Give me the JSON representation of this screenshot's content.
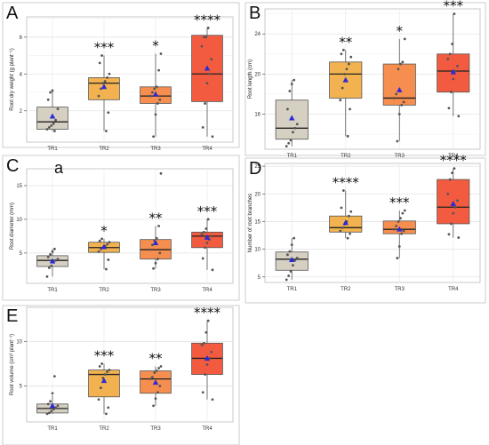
{
  "chart_data": [
    {
      "type": "box",
      "panel_label": "A",
      "panel_note": "",
      "ylabel": "Root dry weight (g plant⁻¹)",
      "categories": [
        "TR1",
        "TR2",
        "TR3",
        "TR4"
      ],
      "ylim": [
        0.3,
        7.1
      ],
      "yticks": [
        2,
        4,
        6
      ],
      "grid": true,
      "colors": [
        "#d6d0c2",
        "#f2b24f",
        "#f68e4f",
        "#f25b3f"
      ],
      "boxes": [
        {
          "category": "TR1",
          "min": 0.9,
          "q1": 1.0,
          "median": 1.4,
          "q3": 2.2,
          "max": 3.1,
          "mean": 1.7
        },
        {
          "category": "TR2",
          "min": 0.9,
          "q1": 2.6,
          "median": 3.5,
          "q3": 3.8,
          "max": 5.0,
          "mean": 3.3
        },
        {
          "category": "TR3",
          "min": 0.6,
          "q1": 2.4,
          "median": 2.8,
          "q3": 3.3,
          "max": 5.1,
          "mean": 2.9
        },
        {
          "category": "TR4",
          "min": 0.6,
          "q1": 2.5,
          "median": 4.0,
          "q3": 6.1,
          "max": 6.5,
          "mean": 4.3
        }
      ],
      "points": [
        [
          1.0,
          1.1,
          1.2,
          1.3,
          1.5,
          2.1,
          2.6,
          3.0,
          3.1,
          0.9
        ],
        [
          0.9,
          1.9,
          2.8,
          3.2,
          3.5,
          3.6,
          3.8,
          4.0,
          4.6,
          5.0
        ],
        [
          0.6,
          1.8,
          2.4,
          2.6,
          2.8,
          3.0,
          3.2,
          3.3,
          4.2,
          5.1
        ],
        [
          0.6,
          1.1,
          2.4,
          3.5,
          4.0,
          4.8,
          5.5,
          6.0,
          6.0,
          6.5
        ]
      ],
      "significance": [
        "",
        "***",
        "*",
        "****"
      ]
    },
    {
      "type": "box",
      "panel_label": "B",
      "panel_note": "",
      "ylabel": "Root length (cm)",
      "categories": [
        "TR1",
        "TR2",
        "TR3",
        "TR4"
      ],
      "ylim": [
        12.5,
        26.5
      ],
      "yticks": [
        16,
        20,
        24
      ],
      "grid": true,
      "colors": [
        "#d6d0c2",
        "#f2b24f",
        "#f68e4f",
        "#f25b3f"
      ],
      "boxes": [
        {
          "category": "TR1",
          "min": 12.8,
          "q1": 13.5,
          "median": 14.6,
          "q3": 17.4,
          "max": 19.4,
          "mean": 15.6
        },
        {
          "category": "TR2",
          "min": 13.8,
          "q1": 17.6,
          "median": 20.0,
          "q3": 21.2,
          "max": 22.4,
          "mean": 19.4
        },
        {
          "category": "TR3",
          "min": 13.3,
          "q1": 16.9,
          "median": 17.6,
          "q3": 21.0,
          "max": 23.5,
          "mean": 18.4
        },
        {
          "category": "TR4",
          "min": 15.8,
          "q1": 18.2,
          "median": 20.3,
          "q3": 22.0,
          "max": 26.0,
          "mean": 20.2
        }
      ],
      "points": [
        [
          12.8,
          13.1,
          13.4,
          14.2,
          14.6,
          15.0,
          16.5,
          18.3,
          19.0,
          19.4
        ],
        [
          13.8,
          16.5,
          17.4,
          18.6,
          20.0,
          20.5,
          21.0,
          21.7,
          22.0,
          22.4
        ],
        [
          13.3,
          16.0,
          16.9,
          17.2,
          17.6,
          18.0,
          20.5,
          21.0,
          21.2,
          23.5
        ],
        [
          15.8,
          16.6,
          18.2,
          19.5,
          20.3,
          20.8,
          21.5,
          22.0,
          23.0,
          26.0
        ]
      ],
      "significance": [
        "",
        "**",
        "*",
        "***"
      ]
    },
    {
      "type": "box",
      "panel_label": "C",
      "panel_note": "a",
      "ylabel": "Root diameter (mm)",
      "categories": [
        "TR1",
        "TR2",
        "TR3",
        "TR4"
      ],
      "ylim": [
        0.5,
        17.5
      ],
      "yticks": [
        5,
        10,
        15
      ],
      "grid": true,
      "colors": [
        "#d6d0c2",
        "#f2b24f",
        "#f68e4f",
        "#f25b3f"
      ],
      "boxes": [
        {
          "category": "TR1",
          "min": 1.5,
          "q1": 3.0,
          "median": 3.9,
          "q3": 4.6,
          "max": 5.6,
          "mean": 3.8
        },
        {
          "category": "TR2",
          "min": 2.6,
          "q1": 5.1,
          "median": 5.8,
          "q3": 6.6,
          "max": 7.1,
          "mean": 5.9
        },
        {
          "category": "TR3",
          "min": 2.7,
          "q1": 4.1,
          "median": 5.5,
          "q3": 7.0,
          "max": 9.0,
          "mean": 6.5
        },
        {
          "category": "TR4",
          "min": 2.5,
          "q1": 5.8,
          "median": 7.5,
          "q3": 8.1,
          "max": 10.0,
          "mean": 7.3
        }
      ],
      "points": [
        [
          1.5,
          2.8,
          3.1,
          3.6,
          3.9,
          4.1,
          4.4,
          4.8,
          5.2,
          5.6
        ],
        [
          2.6,
          4.0,
          5.2,
          5.6,
          5.8,
          6.0,
          6.3,
          6.6,
          6.8,
          7.1
        ],
        [
          2.7,
          3.5,
          4.1,
          5.0,
          5.5,
          6.2,
          6.8,
          7.2,
          9.0,
          16.8
        ],
        [
          2.5,
          4.2,
          5.8,
          6.5,
          7.0,
          7.5,
          7.8,
          8.1,
          8.6,
          10.0
        ]
      ],
      "significance": [
        "",
        "*",
        "**",
        "***"
      ]
    },
    {
      "type": "box",
      "panel_label": "D",
      "panel_note": "",
      "ylabel": "Number of root branches",
      "categories": [
        "TR1",
        "TR2",
        "TR3",
        "TR4"
      ],
      "ylim": [
        4.0,
        25.5
      ],
      "yticks": [
        5,
        10,
        15,
        20,
        25
      ],
      "grid": true,
      "colors": [
        "#d6d0c2",
        "#f2b24f",
        "#f68e4f",
        "#f25b3f"
      ],
      "boxes": [
        {
          "category": "TR1",
          "min": 4.5,
          "q1": 6.2,
          "median": 8.2,
          "q3": 9.5,
          "max": 12.0,
          "mean": 8.1
        },
        {
          "category": "TR2",
          "min": 12.0,
          "q1": 13.1,
          "median": 13.9,
          "q3": 16.0,
          "max": 20.6,
          "mean": 14.8
        },
        {
          "category": "TR3",
          "min": 8.4,
          "q1": 12.8,
          "median": 13.6,
          "q3": 15.1,
          "max": 17.0,
          "mean": 13.6
        },
        {
          "category": "TR4",
          "min": 12.1,
          "q1": 14.6,
          "median": 17.6,
          "q3": 22.6,
          "max": 24.6,
          "mean": 18.2
        }
      ],
      "points": [
        [
          4.5,
          5.2,
          6.0,
          7.1,
          8.0,
          8.4,
          9.0,
          9.6,
          10.8,
          12.0
        ],
        [
          12.0,
          12.8,
          13.3,
          13.9,
          14.5,
          15.0,
          16.0,
          16.8,
          17.5,
          20.6
        ],
        [
          8.4,
          10.5,
          12.8,
          13.3,
          13.6,
          14.2,
          15.0,
          15.6,
          16.5,
          17.0
        ],
        [
          12.1,
          12.7,
          14.6,
          16.5,
          17.6,
          18.8,
          20.0,
          22.6,
          23.8,
          24.6
        ]
      ],
      "significance": [
        "",
        "****",
        "***",
        "****"
      ]
    },
    {
      "type": "box",
      "panel_label": "E",
      "panel_note": "",
      "ylabel": "Root volume (cm³ plant⁻¹)",
      "categories": [
        "TR1",
        "TR2",
        "TR3",
        "TR4"
      ],
      "ylim": [
        1.0,
        13.8
      ],
      "yticks": [
        5,
        10
      ],
      "grid": true,
      "colors": [
        "#d6d0c2",
        "#f2b24f",
        "#f68e4f",
        "#f25b3f"
      ],
      "boxes": [
        {
          "category": "TR1",
          "min": 1.9,
          "q1": 2.0,
          "median": 2.5,
          "q3": 3.0,
          "max": 4.0,
          "mean": 2.8
        },
        {
          "category": "TR2",
          "min": 1.9,
          "q1": 3.8,
          "median": 6.3,
          "q3": 6.8,
          "max": 7.5,
          "mean": 5.6
        },
        {
          "category": "TR3",
          "min": 2.8,
          "q1": 4.2,
          "median": 5.8,
          "q3": 6.7,
          "max": 7.2,
          "mean": 5.4
        },
        {
          "category": "TR4",
          "min": 3.5,
          "q1": 6.3,
          "median": 8.1,
          "q3": 9.8,
          "max": 12.3,
          "mean": 8.1
        }
      ],
      "points": [
        [
          1.9,
          2.0,
          2.2,
          2.4,
          2.6,
          2.8,
          3.0,
          3.3,
          4.2,
          6.1
        ],
        [
          1.9,
          2.6,
          3.5,
          4.8,
          5.9,
          6.3,
          6.6,
          6.8,
          7.2,
          7.5
        ],
        [
          2.8,
          3.6,
          4.3,
          5.0,
          5.8,
          6.0,
          6.5,
          6.7,
          7.0,
          7.2
        ],
        [
          3.5,
          4.3,
          6.3,
          7.4,
          8.1,
          8.8,
          9.6,
          9.8,
          11.0,
          12.3
        ]
      ],
      "significance": [
        "",
        "***",
        "**",
        "****"
      ]
    }
  ]
}
